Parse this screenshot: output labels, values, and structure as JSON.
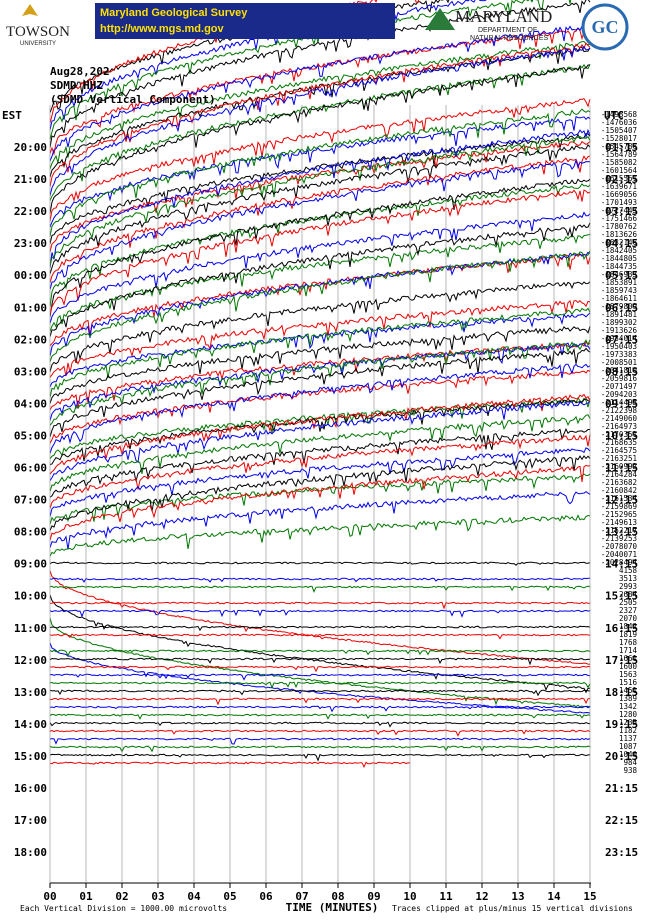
{
  "header": {
    "university": "TOWSON",
    "university_sub": "UNIVERSITY",
    "survey_title": "Maryland Geological Survey",
    "survey_url": "http://www.mgs.md.gov",
    "state": "MARYLAND",
    "dept_line1": "DEPARTMENT OF",
    "dept_line2": "NATURAL RESOURCES",
    "seal": "GC"
  },
  "plot": {
    "date": "Aug28,202",
    "station": "SDMD HHZ",
    "component": "(SDMD Vertical Component)",
    "left_zone": "EST",
    "right_zone": "UTC",
    "est_labels": [
      "20:00",
      "21:00",
      "22:00",
      "23:00",
      "00:00",
      "01:00",
      "02:00",
      "03:00",
      "04:00",
      "05:00",
      "06:00",
      "07:00",
      "08:00",
      "09:00",
      "10:00",
      "11:00",
      "12:00",
      "13:00",
      "14:00",
      "15:00",
      "16:00",
      "17:00",
      "18:00"
    ],
    "utc_labels": [
      "01:15",
      "02:15",
      "03:15",
      "04:15",
      "05:15",
      "06:15",
      "07:15",
      "08:15",
      "09:15",
      "10:15",
      "11:15",
      "12:15",
      "13:15",
      "14:15",
      "15:15",
      "16:15",
      "17:15",
      "18:15",
      "19:15",
      "20:15",
      "21:15",
      "22:15",
      "23:15"
    ],
    "trace_offsets": [
      "-1498568",
      "-1476036",
      "-1505407",
      "-1528017",
      "-1545786",
      "-1564789",
      "-1585082",
      "-1601564",
      "-1615561",
      "-1639671",
      "-1669056",
      "-1701493",
      "-1727443",
      "-1751466",
      "-1780762",
      "-1813626",
      "-1832146",
      "-1842405",
      "-1844805",
      "-1844735",
      "-1846933",
      "-1853891",
      "-1859743",
      "-1864611",
      "-1879809",
      "-1891481",
      "-1899302",
      "-1913626",
      "-1934014",
      "-1950403",
      "-1973383",
      "-2008501",
      "-2041810",
      "-2059816",
      "-2071497",
      "-2094203",
      "-2114495",
      "-2122398",
      "-2149060",
      "-2164973",
      "-2170351",
      "-2168635",
      "-2164575",
      "-2163251",
      "-2160992",
      "-2164284",
      "-2163682",
      "-2160842",
      "-2161534",
      "-2159869",
      "-2152965",
      "-2149613",
      "-2152217",
      "-2139253",
      "-2078070",
      "-2040071",
      "-2028494",
      "4158",
      "3513",
      "2993",
      "2684",
      "2505",
      "2327",
      "2070",
      "1842",
      "1819",
      "1768",
      "1714",
      "1661",
      "1600",
      "1563",
      "1516",
      "1451",
      "1389",
      "1342",
      "1280",
      "1235",
      "1182",
      "1137",
      "1087",
      "1040",
      "984",
      "938"
    ],
    "x_ticks": [
      "00",
      "01",
      "02",
      "03",
      "04",
      "05",
      "06",
      "07",
      "08",
      "09",
      "10",
      "11",
      "12",
      "13",
      "14",
      "15"
    ],
    "x_label": "TIME (MINUTES)",
    "footnote_left": "Each Vertical Division = 1000.00 microvolts",
    "footnote_right": "Traces clipped at plus/minus 15 vertical divisions"
  }
}
